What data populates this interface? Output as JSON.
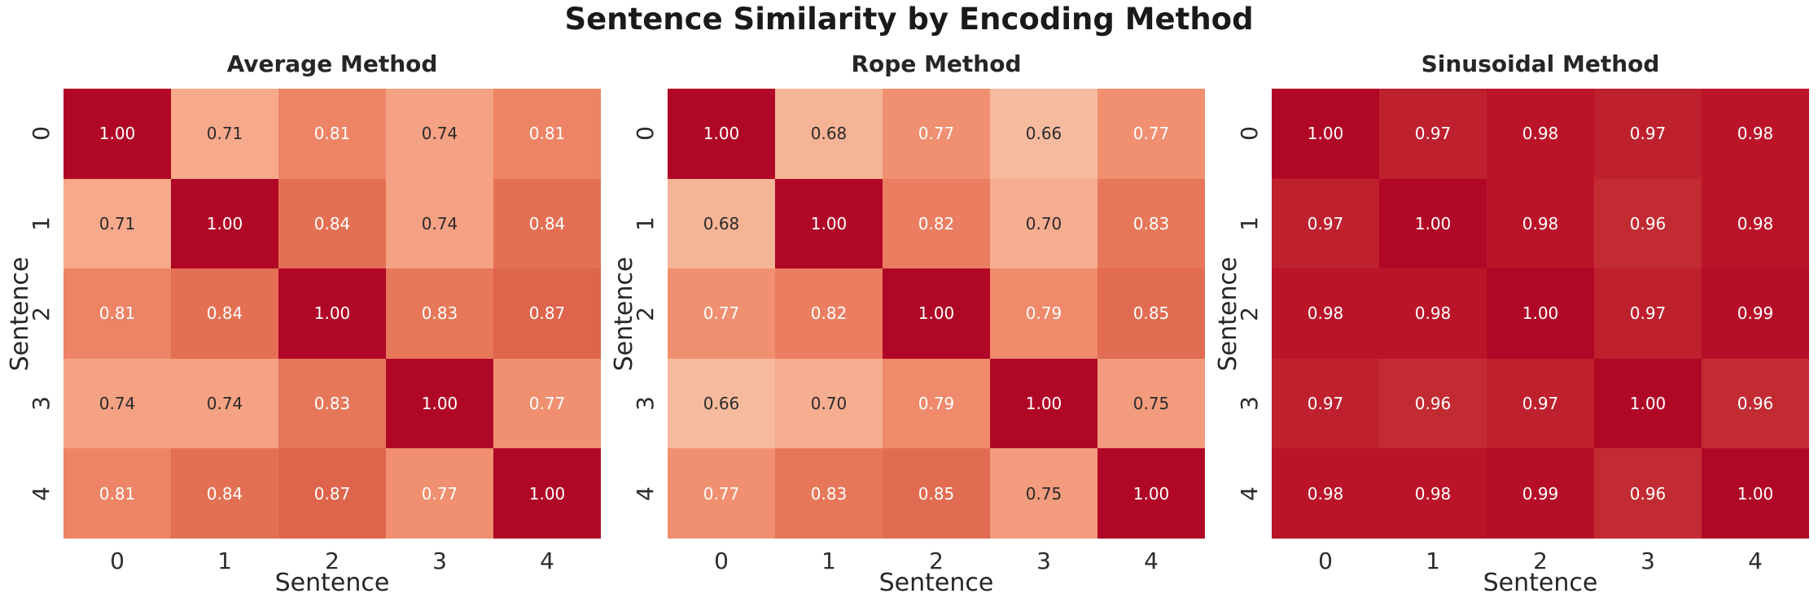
{
  "figure": {
    "title": "Sentence Similarity by Encoding Method"
  },
  "chart_data": [
    {
      "type": "heatmap",
      "title": "Average Method",
      "xlabel": "Sentence",
      "ylabel": "Sentence",
      "x_ticklabels": [
        "0",
        "1",
        "2",
        "3",
        "4"
      ],
      "y_ticklabels": [
        "0",
        "1",
        "2",
        "3",
        "4"
      ],
      "values": [
        [
          1.0,
          0.71,
          0.81,
          0.74,
          0.81
        ],
        [
          0.71,
          1.0,
          0.84,
          0.74,
          0.84
        ],
        [
          0.81,
          0.84,
          1.0,
          0.83,
          0.87
        ],
        [
          0.74,
          0.74,
          0.83,
          1.0,
          0.77
        ],
        [
          0.81,
          0.84,
          0.87,
          0.77,
          1.0
        ]
      ],
      "annotation_format": "2dp",
      "grid_lines": false,
      "legend": "none"
    },
    {
      "type": "heatmap",
      "title": "Rope Method",
      "xlabel": "Sentence",
      "ylabel": "Sentence",
      "x_ticklabels": [
        "0",
        "1",
        "2",
        "3",
        "4"
      ],
      "y_ticklabels": [
        "0",
        "1",
        "2",
        "3",
        "4"
      ],
      "values": [
        [
          1.0,
          0.68,
          0.77,
          0.66,
          0.77
        ],
        [
          0.68,
          1.0,
          0.82,
          0.7,
          0.83
        ],
        [
          0.77,
          0.82,
          1.0,
          0.79,
          0.85
        ],
        [
          0.66,
          0.7,
          0.79,
          1.0,
          0.75
        ],
        [
          0.77,
          0.83,
          0.85,
          0.75,
          1.0
        ]
      ],
      "annotation_format": "2dp",
      "grid_lines": false,
      "legend": "none"
    },
    {
      "type": "heatmap",
      "title": "Sinusoidal Method",
      "xlabel": "Sentence",
      "ylabel": "Sentence",
      "x_ticklabels": [
        "0",
        "1",
        "2",
        "3",
        "4"
      ],
      "y_ticklabels": [
        "0",
        "1",
        "2",
        "3",
        "4"
      ],
      "values": [
        [
          1.0,
          0.97,
          0.98,
          0.97,
          0.98
        ],
        [
          0.97,
          1.0,
          0.98,
          0.96,
          0.98
        ],
        [
          0.98,
          0.98,
          1.0,
          0.97,
          0.99
        ],
        [
          0.97,
          0.96,
          0.97,
          1.0,
          0.96
        ],
        [
          0.98,
          0.98,
          0.99,
          0.96,
          1.0
        ]
      ],
      "annotation_format": "2dp",
      "grid_lines": false,
      "legend": "none"
    }
  ],
  "style": {
    "colormap_name": "Reds (shared scale across subplots)",
    "colormap_anchors": [
      {
        "value": 0.66,
        "color": "#f6bb9f"
      },
      {
        "value": 0.71,
        "color": "#f7a98b"
      },
      {
        "value": 0.74,
        "color": "#f5a183"
      },
      {
        "value": 0.77,
        "color": "#f09070"
      },
      {
        "value": 0.81,
        "color": "#ee8466"
      },
      {
        "value": 0.84,
        "color": "#e47053"
      },
      {
        "value": 0.87,
        "color": "#de654c"
      },
      {
        "value": 0.96,
        "color": "#c32b33"
      },
      {
        "value": 0.98,
        "color": "#bb1429"
      },
      {
        "value": 1.0,
        "color": "#b10726"
      }
    ],
    "annotation_dark_color": "#2b2b2b",
    "annotation_light_color": "#ffffff",
    "annotation_light_threshold": 0.76,
    "background_color": "#ffffff",
    "title_color": "#1a1a1a",
    "tick_color": "#2b2b2b",
    "axis_label_color": "#262626"
  }
}
